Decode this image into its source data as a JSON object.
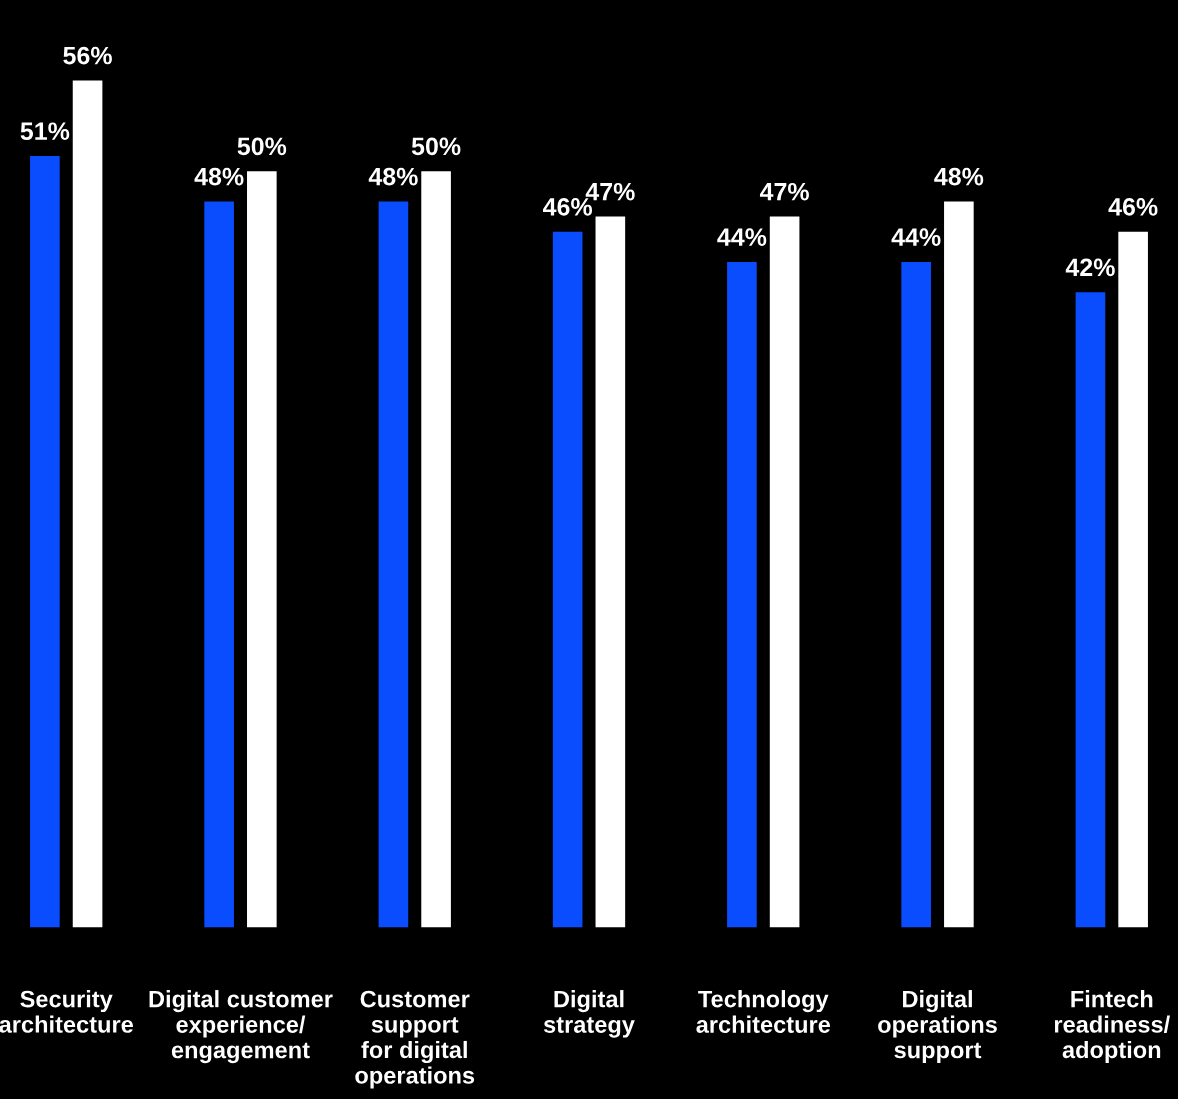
{
  "chart_data": {
    "type": "bar",
    "categories": [
      "Security\narchitecture",
      "Digital customer\nexperience/\nengagement",
      "Customer\nsupport\nfor digital\noperations",
      "Digital\nstrategy",
      "Technology\narchitecture",
      "Digital\noperations\nsupport",
      "Fintech\nreadiness/\nadoption"
    ],
    "series": [
      {
        "color": "#0a4dff",
        "values": [
          51,
          48,
          48,
          46,
          44,
          44,
          42
        ],
        "value_labels": [
          "51%",
          "48%",
          "48%",
          "46%",
          "44%",
          "44%",
          "42%"
        ]
      },
      {
        "color": "#ffffff",
        "values": [
          56,
          50,
          50,
          47,
          47,
          48,
          46
        ],
        "value_labels": [
          "56%",
          "50%",
          "50%",
          "47%",
          "47%",
          "48%",
          "46%"
        ]
      }
    ],
    "grid": false,
    "legend": false
  }
}
